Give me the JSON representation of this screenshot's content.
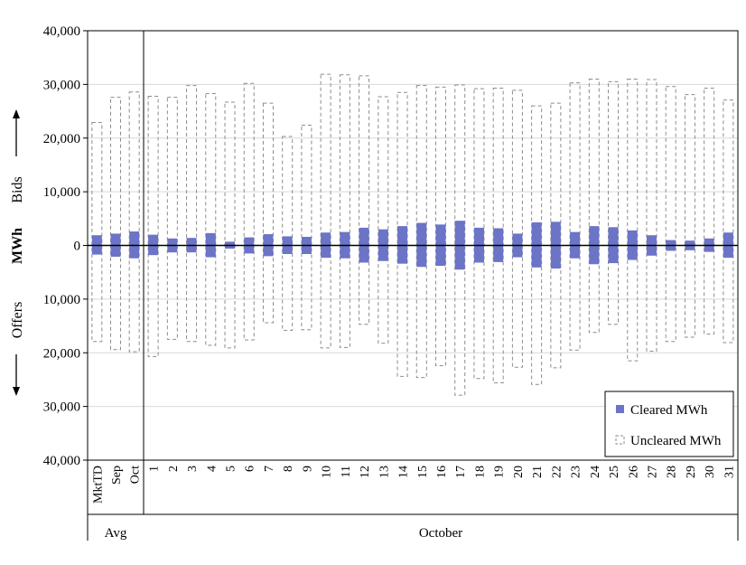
{
  "chart_data": {
    "type": "bar",
    "y_axis_label": "MWh",
    "bids_label": "Bids",
    "offers_label": "Offers",
    "ylim": [
      -40000,
      40000
    ],
    "y_tick_values": [
      40000,
      30000,
      20000,
      10000,
      0,
      -10000,
      -20000,
      -30000,
      -40000
    ],
    "y_tick_labels": [
      "40,000",
      "30,000",
      "20,000",
      "10,000",
      "0",
      "10,000",
      "20,000",
      "30,000",
      "40,000"
    ],
    "groups": [
      {
        "label": "Avg",
        "categories": [
          "MktTD",
          "Sep",
          "Oct"
        ]
      },
      {
        "label": "October",
        "categories": [
          "1",
          "2",
          "3",
          "4",
          "5",
          "6",
          "7",
          "8",
          "9",
          "10",
          "11",
          "12",
          "13",
          "14",
          "15",
          "16",
          "17",
          "18",
          "19",
          "20",
          "21",
          "22",
          "23",
          "24",
          "25",
          "26",
          "27",
          "28",
          "29",
          "30",
          "31"
        ]
      }
    ],
    "categories": [
      "MktTD",
      "Sep",
      "Oct",
      "1",
      "2",
      "3",
      "4",
      "5",
      "6",
      "7",
      "8",
      "9",
      "10",
      "11",
      "12",
      "13",
      "14",
      "15",
      "16",
      "17",
      "18",
      "19",
      "20",
      "21",
      "22",
      "23",
      "24",
      "25",
      "26",
      "27",
      "28",
      "29",
      "30",
      "31"
    ],
    "series": [
      {
        "name": "Cleared MWh",
        "color": "#6b74c7",
        "bids": [
          1900,
          2200,
          2600,
          2000,
          1300,
          1400,
          2300,
          700,
          1500,
          2100,
          1700,
          1600,
          2400,
          2500,
          3300,
          3000,
          3600,
          4200,
          3900,
          4600,
          3300,
          3200,
          2200,
          4300,
          4400,
          2500,
          3600,
          3400,
          2800,
          1900,
          1000,
          900,
          1300,
          2400
        ],
        "offers": [
          -1700,
          -2100,
          -2400,
          -1800,
          -1300,
          -1300,
          -2200,
          -600,
          -1500,
          -2000,
          -1600,
          -1600,
          -2300,
          -2400,
          -3200,
          -2900,
          -3400,
          -4000,
          -3800,
          -4500,
          -3200,
          -3100,
          -2200,
          -4100,
          -4300,
          -2400,
          -3500,
          -3300,
          -2700,
          -1900,
          -1000,
          -900,
          -1200,
          -2300
        ]
      },
      {
        "name": "Uncleared MWh",
        "color": "#8c8c8c",
        "bids": [
          22900,
          27600,
          28600,
          27800,
          27600,
          29800,
          28300,
          26700,
          30200,
          26500,
          20300,
          22400,
          31900,
          31800,
          31600,
          27700,
          28500,
          29800,
          29500,
          29900,
          29200,
          29300,
          28900,
          26000,
          26500,
          30300,
          31000,
          30500,
          31000,
          30900,
          29600,
          28100,
          29300,
          27100
        ],
        "offers": [
          -17900,
          -19400,
          -19800,
          -20700,
          -17500,
          -17900,
          -18600,
          -19100,
          -17600,
          -14400,
          -15800,
          -15700,
          -19100,
          -19000,
          -14700,
          -18200,
          -24400,
          -24600,
          -22400,
          -27900,
          -24800,
          -25600,
          -22700,
          -25900,
          -22800,
          -19500,
          -16200,
          -14700,
          -21500,
          -19700,
          -17900,
          -17100,
          -16500,
          -18100
        ]
      }
    ],
    "legend": {
      "position": "bottom-right"
    },
    "grid": "horizontal"
  }
}
